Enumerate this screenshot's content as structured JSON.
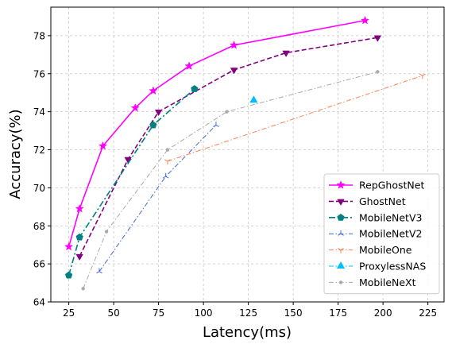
{
  "chart_data": {
    "type": "line",
    "title": "",
    "xlabel": "Latency(ms)",
    "ylabel": "Accuracy(%)",
    "xlim": [
      15,
      234
    ],
    "ylim": [
      64,
      79.5
    ],
    "xticks": [
      25,
      50,
      75,
      100,
      125,
      150,
      175,
      200,
      225
    ],
    "yticks": [
      64,
      66,
      68,
      70,
      72,
      74,
      76,
      78
    ],
    "grid": true,
    "legend_position": "lower-right",
    "series": [
      {
        "name": "RepGhostNet",
        "color": "#ff00ff",
        "dash": "solid",
        "marker": "star",
        "x": [
          25,
          31,
          44,
          62,
          72,
          92,
          117,
          190
        ],
        "y": [
          66.9,
          68.9,
          72.2,
          74.2,
          75.1,
          76.4,
          77.5,
          78.8
        ]
      },
      {
        "name": "GhostNet",
        "color": "#800080",
        "dash": "dashed",
        "marker": "triangle-down",
        "x": [
          31,
          58,
          75,
          117,
          146,
          197
        ],
        "y": [
          66.4,
          71.5,
          74.0,
          76.2,
          77.1,
          77.9
        ]
      },
      {
        "name": "MobileNetV3",
        "color": "#008080",
        "dash": "dashdot",
        "marker": "pentagon",
        "x": [
          25,
          31,
          72,
          95
        ],
        "y": [
          65.4,
          67.4,
          73.3,
          75.2
        ]
      },
      {
        "name": "MobileNetV2",
        "color": "#4169e1",
        "dash": "dashdot-thin",
        "marker": "tri-up",
        "x": [
          42,
          79,
          107
        ],
        "y": [
          65.6,
          70.6,
          73.3
        ]
      },
      {
        "name": "MobileOne",
        "color": "#ff7f50",
        "dash": "dashdot-thin",
        "marker": "tri-down",
        "x": [
          80,
          222
        ],
        "y": [
          71.4,
          75.9
        ]
      },
      {
        "name": "ProxylessNAS",
        "color": "#00bfff",
        "dash": "dashdot-thin",
        "marker": "triangle-up",
        "x": [
          128
        ],
        "y": [
          74.6
        ]
      },
      {
        "name": "MobileNeXt",
        "color": "#a9a9a9",
        "dash": "dashdot-thin",
        "marker": "dot",
        "x": [
          33,
          46,
          80,
          113,
          197
        ],
        "y": [
          64.7,
          67.7,
          72.0,
          74.0,
          76.1
        ]
      }
    ]
  }
}
